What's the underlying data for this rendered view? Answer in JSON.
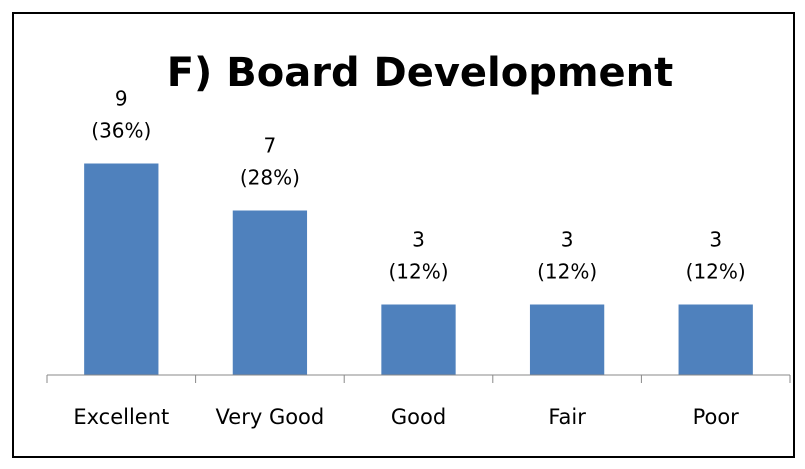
{
  "chart_data": {
    "type": "bar",
    "title": "F)  Board Development",
    "categories": [
      "Excellent",
      "Very Good",
      "Good",
      "Fair",
      "Poor"
    ],
    "values": [
      9,
      7,
      3,
      3,
      3
    ],
    "value_labels": [
      "9 (36%)",
      "7 (28%)",
      "3 (12%)",
      "3 (12%)",
      "3 (12%)"
    ],
    "color": "#4f81bd",
    "ylim": [
      0,
      10
    ]
  }
}
